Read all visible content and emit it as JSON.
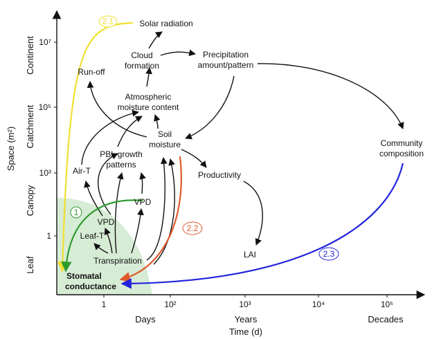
{
  "axes": {
    "y_title": "Space (m²)",
    "y_ticks": [
      "10⁷",
      "10⁵",
      "10³",
      "1"
    ],
    "y_scales": [
      "Continent",
      "Catchment",
      "Canopy",
      "Leaf"
    ],
    "x_ticks": [
      "1",
      "10²",
      "10³",
      "10⁴",
      "10⁵"
    ],
    "x_scales": [
      "Days",
      "Years",
      "Decades"
    ],
    "x_title": "Time (d)"
  },
  "nodes": {
    "solar": "Solar radiation",
    "cloud_1": "Cloud",
    "cloud_2": "formation",
    "precip_1": "Precipitation",
    "precip_2": "amount/pattern",
    "runoff": "Run-off",
    "atm_1": "Atmospheric",
    "atm_2": "moisture content",
    "soil_1": "Soil",
    "soil_2": "moisture",
    "pbl_1": "PBL growth",
    "pbl_2": "patterns",
    "airt": "Air-T",
    "productivity": "Productivity",
    "community_1": "Community",
    "community_2": "composition",
    "vpd_canopy": "VPD",
    "vpd_leaf": "VPD",
    "leaft": "Leaf-T",
    "transpiration": "Transpiration",
    "lai": "LAI",
    "stomatal_1": "Stomatal",
    "stomatal_2": "conductance"
  },
  "pathways": [
    {
      "label": "2.1",
      "color": "#f0e030"
    },
    {
      "label": "1",
      "color": "#2e9b2e"
    },
    {
      "label": "2.2",
      "color": "#e05a2b"
    },
    {
      "label": "2.3",
      "color": "#2222dd"
    }
  ],
  "colors": {
    "leaf_region": "#d7ecd5",
    "arrow": "#111111"
  }
}
